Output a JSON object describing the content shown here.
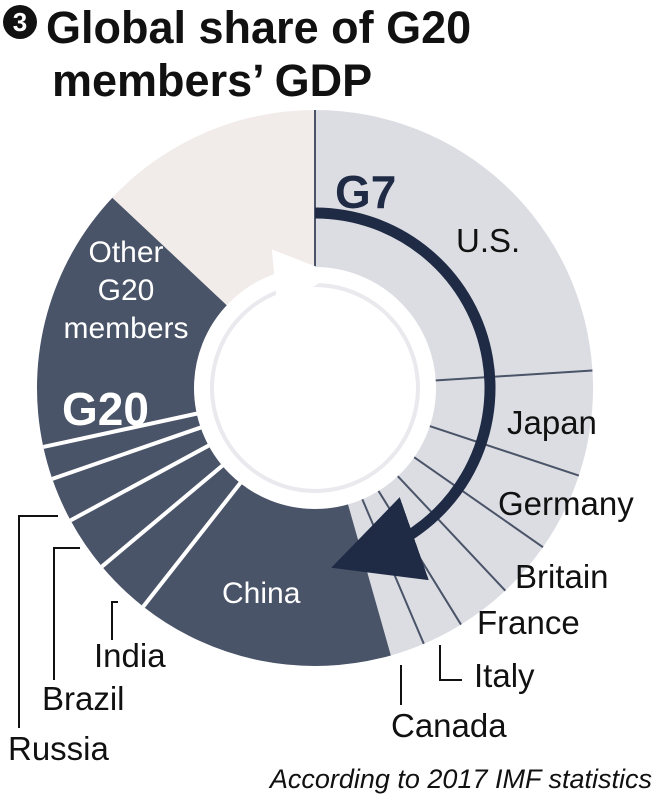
{
  "badge": "3",
  "title_lines": [
    "Global share of G20",
    "members’ GDP"
  ],
  "footnote": "According to 2017 IMF statistics",
  "colors": {
    "g7_fill": "#dcdde3",
    "g20_fill": "#4a5468",
    "rest_fill": "#f1ece9",
    "divider_g7": "#4a5468",
    "divider_g20": "#ffffff",
    "arrow_dark": "#1f2b45",
    "text_dark": "#111111"
  },
  "chart_data": {
    "type": "pie",
    "style": "donut",
    "title": "Global share of G20 members’ GDP",
    "note": "According to 2017 IMF statistics",
    "slices": [
      {
        "label": "U.S.",
        "value": 24.0,
        "group": "G7"
      },
      {
        "label": "Japan",
        "value": 6.1,
        "group": "G7"
      },
      {
        "label": "Germany",
        "value": 4.6,
        "group": "G7"
      },
      {
        "label": "Britain",
        "value": 3.3,
        "group": "G7"
      },
      {
        "label": "France",
        "value": 3.2,
        "group": "G7"
      },
      {
        "label": "Italy",
        "value": 2.4,
        "group": "G7"
      },
      {
        "label": "Canada",
        "value": 2.0,
        "group": "G7"
      },
      {
        "label": "China",
        "value": 15.0,
        "group": "G20"
      },
      {
        "label": "",
        "value": 3.3,
        "group": "G20"
      },
      {
        "label": "India",
        "value": 3.2,
        "group": "G20"
      },
      {
        "label": "Brazil",
        "value": 2.6,
        "group": "G20"
      },
      {
        "label": "Russia",
        "value": 1.9,
        "group": "G20"
      },
      {
        "label": "Other G20 members",
        "value": 15.4,
        "group": "G20"
      },
      {
        "label": "",
        "value": 13.0,
        "group": "Rest"
      }
    ],
    "group_labels": [
      {
        "label": "G7",
        "arrow": "clockwise"
      },
      {
        "label": "G20",
        "arrow": "clockwise"
      }
    ]
  }
}
